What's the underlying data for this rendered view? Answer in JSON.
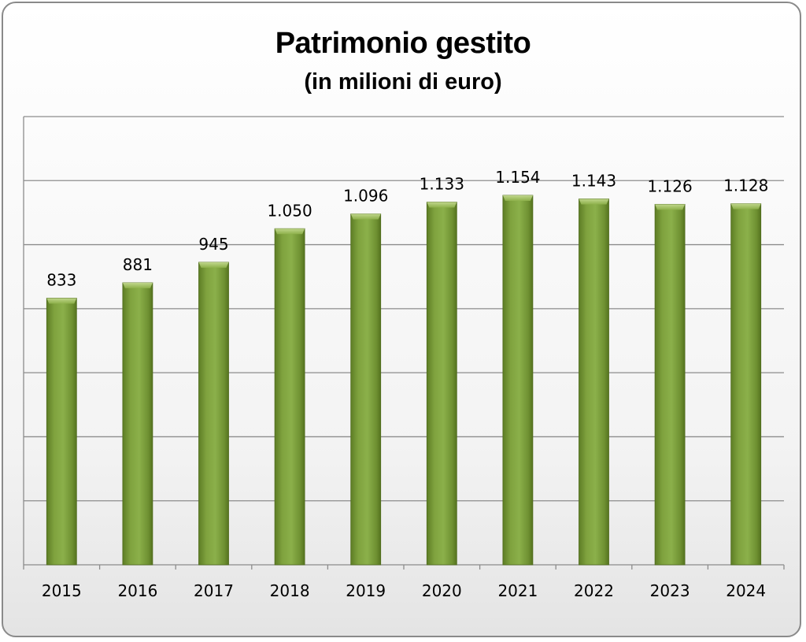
{
  "chart_data": {
    "type": "bar",
    "title": "Patrimonio gestito",
    "subtitle": "(in milioni di euro)",
    "categories": [
      "2015",
      "2016",
      "2017",
      "2018",
      "2019",
      "2020",
      "2021",
      "2022",
      "2023",
      "2024"
    ],
    "values": [
      833,
      881,
      945,
      1050,
      1096,
      1133,
      1154,
      1143,
      1126,
      1128
    ],
    "value_labels": [
      "833",
      "881",
      "945",
      "1.050",
      "1.096",
      "1.133",
      "1.154",
      "1.143",
      "1.126",
      "1.128"
    ],
    "ylim": [
      0,
      1400
    ],
    "grid": true,
    "bar_color": "#7b9e3a",
    "legend": "none"
  }
}
